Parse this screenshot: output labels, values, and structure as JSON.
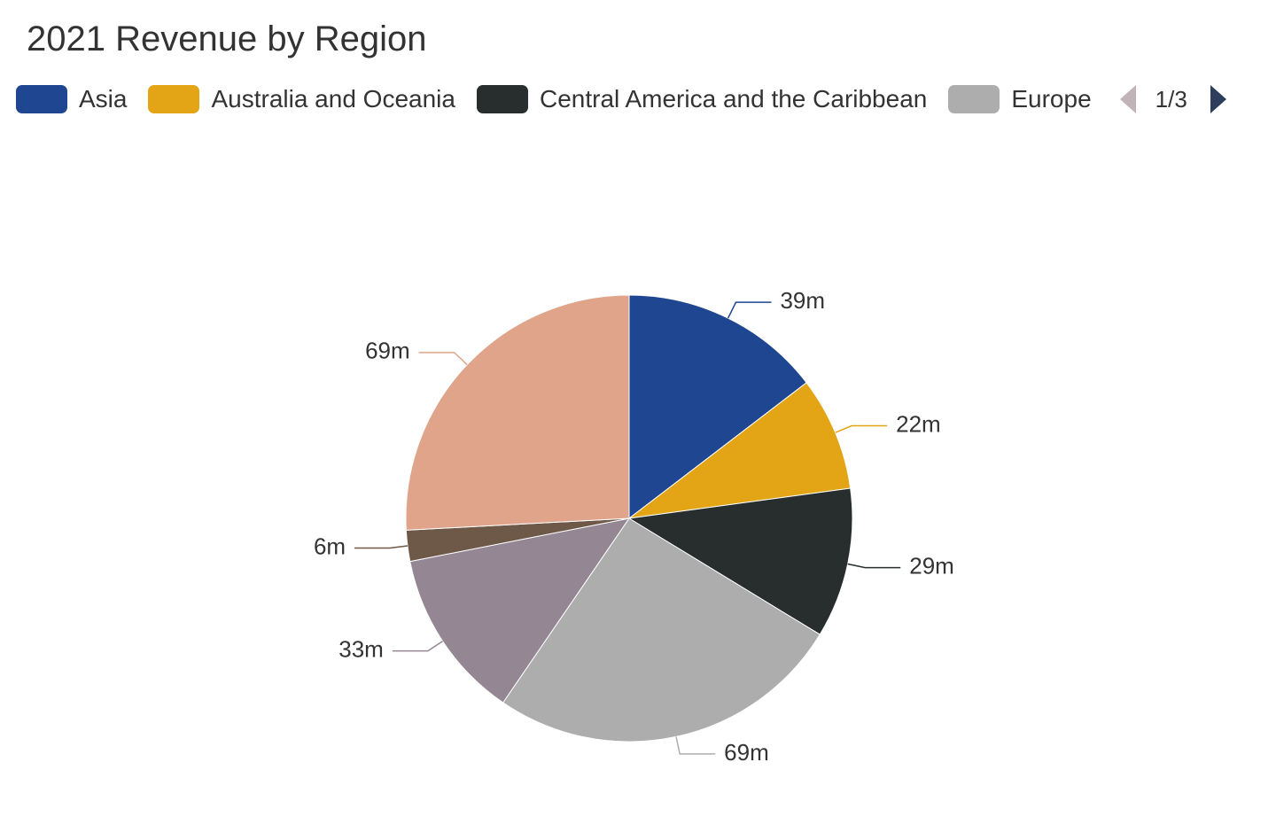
{
  "chart_data": {
    "type": "pie",
    "title": "2021 Revenue by Region",
    "series": [
      {
        "name": "Asia",
        "value": 39,
        "label": "39m",
        "color": "#1f4690"
      },
      {
        "name": "Australia and Oceania",
        "value": 22,
        "label": "22m",
        "color": "#e3a415"
      },
      {
        "name": "Central America and the Caribbean",
        "value": 29,
        "label": "29m",
        "color": "#282d2d"
      },
      {
        "name": "Europe",
        "value": 69,
        "label": "69m",
        "color": "#adadad"
      },
      {
        "value": 33,
        "label": "33m",
        "color": "#948793"
      },
      {
        "value": 6,
        "label": "6m",
        "color": "#6e5848"
      },
      {
        "value": 69,
        "label": "69m",
        "color": "#e0a48b"
      }
    ],
    "legend_position": "top"
  },
  "legend": {
    "page_indicator": "1/3",
    "prev_color": "#c0b4b8",
    "next_color": "#2c3e5c"
  }
}
